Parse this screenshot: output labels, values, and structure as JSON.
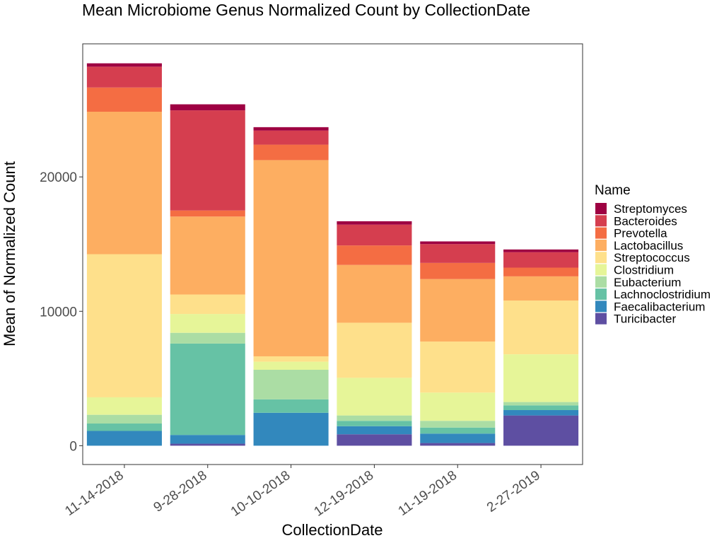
{
  "chart_data": {
    "type": "bar",
    "stacked": true,
    "title": "Mean Microbiome Genus Normalized Count by CollectionDate",
    "xlabel": "CollectionDate",
    "ylabel": "Mean of Normalized Count",
    "ylim": [
      -1400,
      29900
    ],
    "yticks": [
      0,
      10000,
      20000
    ],
    "grid": false,
    "legend_position": "right",
    "legend_title": "Name",
    "categories": [
      "11-14-2018",
      "9-28-2018",
      "10-10-2018",
      "12-19-2018",
      "11-19-2018",
      "2-27-2019"
    ],
    "series": [
      {
        "name": "Turicibacter",
        "color": "#5e4fa2",
        "values": [
          0,
          150,
          0,
          850,
          200,
          2250
        ]
      },
      {
        "name": "Faecalibacterium",
        "color": "#3288bd",
        "values": [
          1100,
          650,
          2450,
          600,
          700,
          400
        ]
      },
      {
        "name": "Lachnoclostridium",
        "color": "#66c2a5",
        "values": [
          550,
          6800,
          1000,
          400,
          450,
          350
        ]
      },
      {
        "name": "Eubacterium",
        "color": "#abdda4",
        "values": [
          650,
          800,
          2200,
          400,
          500,
          250
        ]
      },
      {
        "name": "Clostridium",
        "color": "#e6f598",
        "values": [
          1300,
          1400,
          600,
          2800,
          2100,
          3550
        ]
      },
      {
        "name": "Streptococcus",
        "color": "#fee08b",
        "values": [
          10650,
          1450,
          400,
          4100,
          3800,
          4000
        ]
      },
      {
        "name": "Lactobacillus",
        "color": "#fdae61",
        "values": [
          10600,
          5800,
          14600,
          4300,
          4650,
          1800
        ]
      },
      {
        "name": "Prevotella",
        "color": "#f46d43",
        "values": [
          1800,
          450,
          1150,
          1450,
          1200,
          650
        ]
      },
      {
        "name": "Bacteroides",
        "color": "#d53e4f",
        "values": [
          1550,
          7450,
          1050,
          1550,
          1400,
          1150
        ]
      },
      {
        "name": "Streptomyces",
        "color": "#9e0142",
        "values": [
          250,
          450,
          250,
          250,
          200,
          200
        ]
      }
    ]
  }
}
